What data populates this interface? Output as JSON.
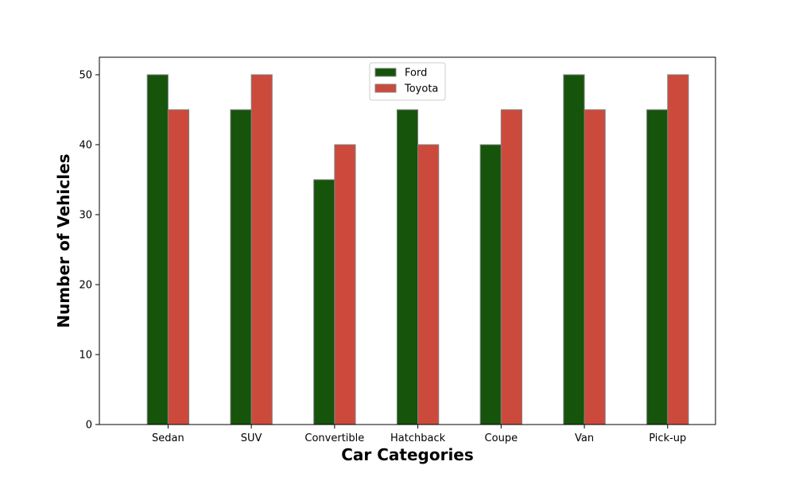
{
  "chart_data": {
    "type": "bar",
    "categories": [
      "Sedan",
      "SUV",
      "Convertible",
      "Hatchback",
      "Coupe",
      "Van",
      "Pick-up"
    ],
    "series": [
      {
        "name": "Ford",
        "values": [
          50,
          45,
          35,
          45,
          40,
          50,
          45
        ],
        "color": "#15540a"
      },
      {
        "name": "Toyota",
        "values": [
          45,
          50,
          40,
          40,
          45,
          45,
          50
        ],
        "color": "#cc4a3c"
      }
    ],
    "bar_edge_color": "#808080",
    "title": "",
    "xlabel": "Car Categories",
    "ylabel": "Number of Vehicles",
    "ylim": [
      0,
      52.5
    ],
    "yticks": [
      0,
      10,
      20,
      30,
      40,
      50
    ],
    "grid": false,
    "legend_position": "top-center"
  }
}
